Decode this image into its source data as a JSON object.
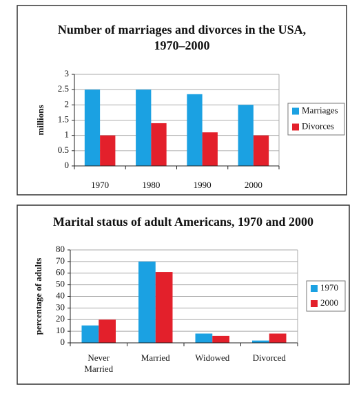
{
  "chart_data": [
    {
      "type": "bar",
      "title": "Number of marriages and divorces in the USA, 1970–2000",
      "y_label": "millions",
      "categories": [
        "1970",
        "1980",
        "1990",
        "2000"
      ],
      "series": [
        {
          "name": "Marriages",
          "color": "#1ba1e2",
          "values": [
            2.5,
            2.5,
            2.35,
            2.0
          ]
        },
        {
          "name": "Divorces",
          "color": "#e3202b",
          "values": [
            1.0,
            1.4,
            1.1,
            1.0
          ]
        }
      ],
      "ylim": [
        0,
        3
      ],
      "yticks": [
        0,
        0.5,
        1,
        1.5,
        2,
        2.5,
        3
      ],
      "grid": true,
      "legend": "right"
    },
    {
      "type": "bar",
      "title": "Marital status of adult Americans, 1970 and 2000",
      "y_label": "percentage of adults",
      "categories": [
        "Never Married",
        "Married",
        "Widowed",
        "Divorced"
      ],
      "series": [
        {
          "name": "1970",
          "color": "#1ba1e2",
          "values": [
            15,
            70,
            8,
            2
          ]
        },
        {
          "name": "2000",
          "color": "#e3202b",
          "values": [
            20,
            61,
            6,
            8
          ]
        }
      ],
      "ylim": [
        0,
        80
      ],
      "yticks": [
        0,
        10,
        20,
        30,
        40,
        50,
        60,
        70,
        80
      ],
      "grid": true,
      "legend": "right"
    }
  ]
}
